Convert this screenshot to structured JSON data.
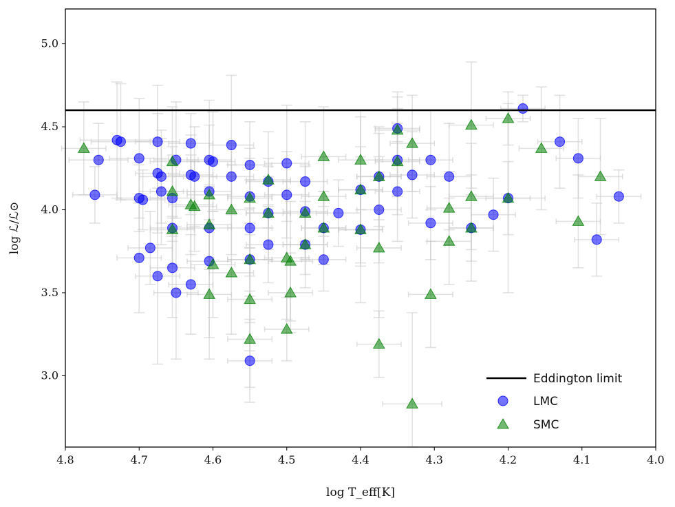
{
  "chart_data": {
    "type": "scatter",
    "xlabel": "log T_eff[K]",
    "ylabel": "log ℒ/ℒ⊙",
    "xlim": [
      4.8,
      4.0
    ],
    "ylim": [
      2.57,
      5.21
    ],
    "x_ticks": [
      "4.8",
      "4.7",
      "4.6",
      "4.5",
      "4.4",
      "4.3",
      "4.2",
      "4.1",
      "4.0"
    ],
    "y_ticks": [
      "3.0",
      "3.5",
      "4.0",
      "4.5",
      "5.0"
    ],
    "hline": {
      "name": "Eddington limit",
      "y": 4.6,
      "color": "#000000"
    },
    "legend": {
      "position": "lower-right",
      "entries": [
        "Eddington limit",
        "LMC",
        "SMC"
      ]
    },
    "series": [
      {
        "name": "LMC",
        "marker": "circle",
        "color": "#0000ff",
        "alpha": 0.55,
        "points": [
          [
            4.76,
            4.09,
            0.03,
            0.17
          ],
          [
            4.755,
            4.3,
            0.04,
            0.22
          ],
          [
            4.73,
            4.42,
            0.05,
            0.35
          ],
          [
            4.725,
            4.41,
            0.04,
            0.35
          ],
          [
            4.7,
            4.31,
            0.04,
            0.36
          ],
          [
            4.7,
            4.07,
            0.03,
            0.2
          ],
          [
            4.695,
            4.06,
            0.03,
            0.18
          ],
          [
            4.7,
            3.71,
            0.03,
            0.33
          ],
          [
            4.685,
            3.77,
            0.03,
            0.22
          ],
          [
            4.675,
            4.41,
            0.03,
            0.34
          ],
          [
            4.675,
            4.22,
            0.03,
            0.36
          ],
          [
            4.67,
            4.2,
            0.03,
            0.28
          ],
          [
            4.67,
            4.11,
            0.03,
            0.32
          ],
          [
            4.675,
            3.6,
            0.03,
            0.53
          ],
          [
            4.655,
            4.07,
            0.03,
            0.26
          ],
          [
            4.655,
            3.89,
            0.03,
            0.22
          ],
          [
            4.655,
            3.65,
            0.03,
            0.3
          ],
          [
            4.65,
            4.3,
            0.03,
            0.35
          ],
          [
            4.65,
            3.5,
            0.03,
            0.4
          ],
          [
            4.63,
            4.4,
            0.03,
            0.18
          ],
          [
            4.63,
            4.21,
            0.03,
            0.24
          ],
          [
            4.625,
            4.2,
            0.03,
            0.3
          ],
          [
            4.63,
            3.55,
            0.03,
            0.3
          ],
          [
            4.605,
            4.3,
            0.03,
            0.36
          ],
          [
            4.6,
            4.29,
            0.03,
            0.3
          ],
          [
            4.605,
            4.11,
            0.03,
            0.4
          ],
          [
            4.605,
            3.89,
            0.03,
            0.25
          ],
          [
            4.605,
            3.69,
            0.03,
            0.46
          ],
          [
            4.575,
            4.39,
            0.03,
            0.42
          ],
          [
            4.575,
            4.2,
            0.03,
            0.2
          ],
          [
            4.55,
            4.27,
            0.03,
            0.26
          ],
          [
            4.55,
            4.08,
            0.03,
            0.23
          ],
          [
            4.55,
            3.89,
            0.03,
            0.29
          ],
          [
            4.55,
            3.7,
            0.03,
            0.38
          ],
          [
            4.55,
            3.09,
            0.03,
            0.25
          ],
          [
            4.525,
            4.17,
            0.03,
            0.14
          ],
          [
            4.525,
            3.98,
            0.03,
            0.28
          ],
          [
            4.525,
            3.79,
            0.03,
            0.23
          ],
          [
            4.5,
            4.28,
            0.03,
            0.35
          ],
          [
            4.5,
            4.09,
            0.03,
            0.26
          ],
          [
            4.475,
            4.17,
            0.03,
            0.36
          ],
          [
            4.475,
            3.99,
            0.03,
            0.28
          ],
          [
            4.475,
            3.79,
            0.03,
            0.26
          ],
          [
            4.45,
            3.89,
            0.03,
            0.22
          ],
          [
            4.45,
            3.7,
            0.03,
            0.19
          ],
          [
            4.43,
            3.98,
            0.03,
            0.2
          ],
          [
            4.4,
            4.12,
            0.03,
            0.44
          ],
          [
            4.4,
            3.88,
            0.03,
            0.44
          ],
          [
            4.375,
            4.2,
            0.03,
            0.26
          ],
          [
            4.375,
            4.0,
            0.03,
            0.32
          ],
          [
            4.35,
            4.49,
            0.03,
            0.22
          ],
          [
            4.35,
            4.3,
            0.03,
            0.22
          ],
          [
            4.35,
            4.11,
            0.03,
            0.3
          ],
          [
            4.33,
            4.21,
            0.03,
            0.26
          ],
          [
            4.305,
            4.3,
            0.03,
            0.3
          ],
          [
            4.305,
            3.92,
            0.03,
            0.22
          ],
          [
            4.28,
            4.2,
            0.03,
            0.32
          ],
          [
            4.25,
            3.89,
            0.03,
            0.2
          ],
          [
            4.22,
            3.97,
            0.03,
            0.22
          ],
          [
            4.2,
            4.07,
            0.05,
            0.22
          ],
          [
            4.18,
            4.61,
            0.03,
            0.08
          ],
          [
            4.13,
            4.41,
            0.03,
            0.28
          ],
          [
            4.105,
            4.31,
            0.03,
            0.24
          ],
          [
            4.08,
            3.82,
            0.03,
            0.22
          ],
          [
            4.05,
            4.08,
            0.03,
            0.16
          ]
        ]
      },
      {
        "name": "SMC",
        "marker": "triangle",
        "color": "#008000",
        "alpha": 0.55,
        "points": [
          [
            4.775,
            4.37,
            0.03,
            0.28
          ],
          [
            4.655,
            4.29,
            0.03,
            0.33
          ],
          [
            4.655,
            4.11,
            0.03,
            0.27
          ],
          [
            4.655,
            3.88,
            0.03,
            0.22
          ],
          [
            4.63,
            4.03,
            0.03,
            0.3
          ],
          [
            4.625,
            4.02,
            0.03,
            0.27
          ],
          [
            4.605,
            4.09,
            0.03,
            0.2
          ],
          [
            4.605,
            3.91,
            0.03,
            0.22
          ],
          [
            4.6,
            3.67,
            0.03,
            0.32
          ],
          [
            4.605,
            3.49,
            0.03,
            0.39
          ],
          [
            4.575,
            4.0,
            0.03,
            0.27
          ],
          [
            4.575,
            3.62,
            0.03,
            0.37
          ],
          [
            4.55,
            4.07,
            0.03,
            0.3
          ],
          [
            4.55,
            3.7,
            0.03,
            0.22
          ],
          [
            4.55,
            3.46,
            0.03,
            0.31
          ],
          [
            4.55,
            3.22,
            0.03,
            0.29
          ],
          [
            4.525,
            4.18,
            0.03,
            0.29
          ],
          [
            4.525,
            3.98,
            0.03,
            0.22
          ],
          [
            4.5,
            3.71,
            0.03,
            0.37
          ],
          [
            4.495,
            3.69,
            0.03,
            0.36
          ],
          [
            4.495,
            3.5,
            0.03,
            0.24
          ],
          [
            4.5,
            3.28,
            0.03,
            0.19
          ],
          [
            4.475,
            3.98,
            0.03,
            0.28
          ],
          [
            4.475,
            3.79,
            0.03,
            0.18
          ],
          [
            4.45,
            4.32,
            0.03,
            0.3
          ],
          [
            4.45,
            4.08,
            0.03,
            0.24
          ],
          [
            4.45,
            3.89,
            0.03,
            0.22
          ],
          [
            4.4,
            4.3,
            0.03,
            0.3
          ],
          [
            4.4,
            4.12,
            0.03,
            0.26
          ],
          [
            4.4,
            3.88,
            0.03,
            0.22
          ],
          [
            4.375,
            4.2,
            0.03,
            0.3
          ],
          [
            4.375,
            3.77,
            0.03,
            0.42
          ],
          [
            4.375,
            3.19,
            0.03,
            0.2
          ],
          [
            4.35,
            4.48,
            0.03,
            0.2
          ],
          [
            4.35,
            4.29,
            0.03,
            0.32
          ],
          [
            4.33,
            4.4,
            0.03,
            0.29
          ],
          [
            4.33,
            2.83,
            0.04,
            0.55
          ],
          [
            4.305,
            3.49,
            0.03,
            0.32
          ],
          [
            4.28,
            4.01,
            0.03,
            0.22
          ],
          [
            4.28,
            3.81,
            0.03,
            0.26
          ],
          [
            4.25,
            4.51,
            0.03,
            0.38
          ],
          [
            4.25,
            4.08,
            0.03,
            0.32
          ],
          [
            4.25,
            3.89,
            0.03,
            0.32
          ],
          [
            4.2,
            4.55,
            0.03,
            0.16
          ],
          [
            4.2,
            4.07,
            0.03,
            0.57
          ],
          [
            4.155,
            4.37,
            0.03,
            0.37
          ],
          [
            4.105,
            3.93,
            0.03,
            0.28
          ],
          [
            4.075,
            4.2,
            0.03,
            0.35
          ]
        ]
      }
    ]
  }
}
